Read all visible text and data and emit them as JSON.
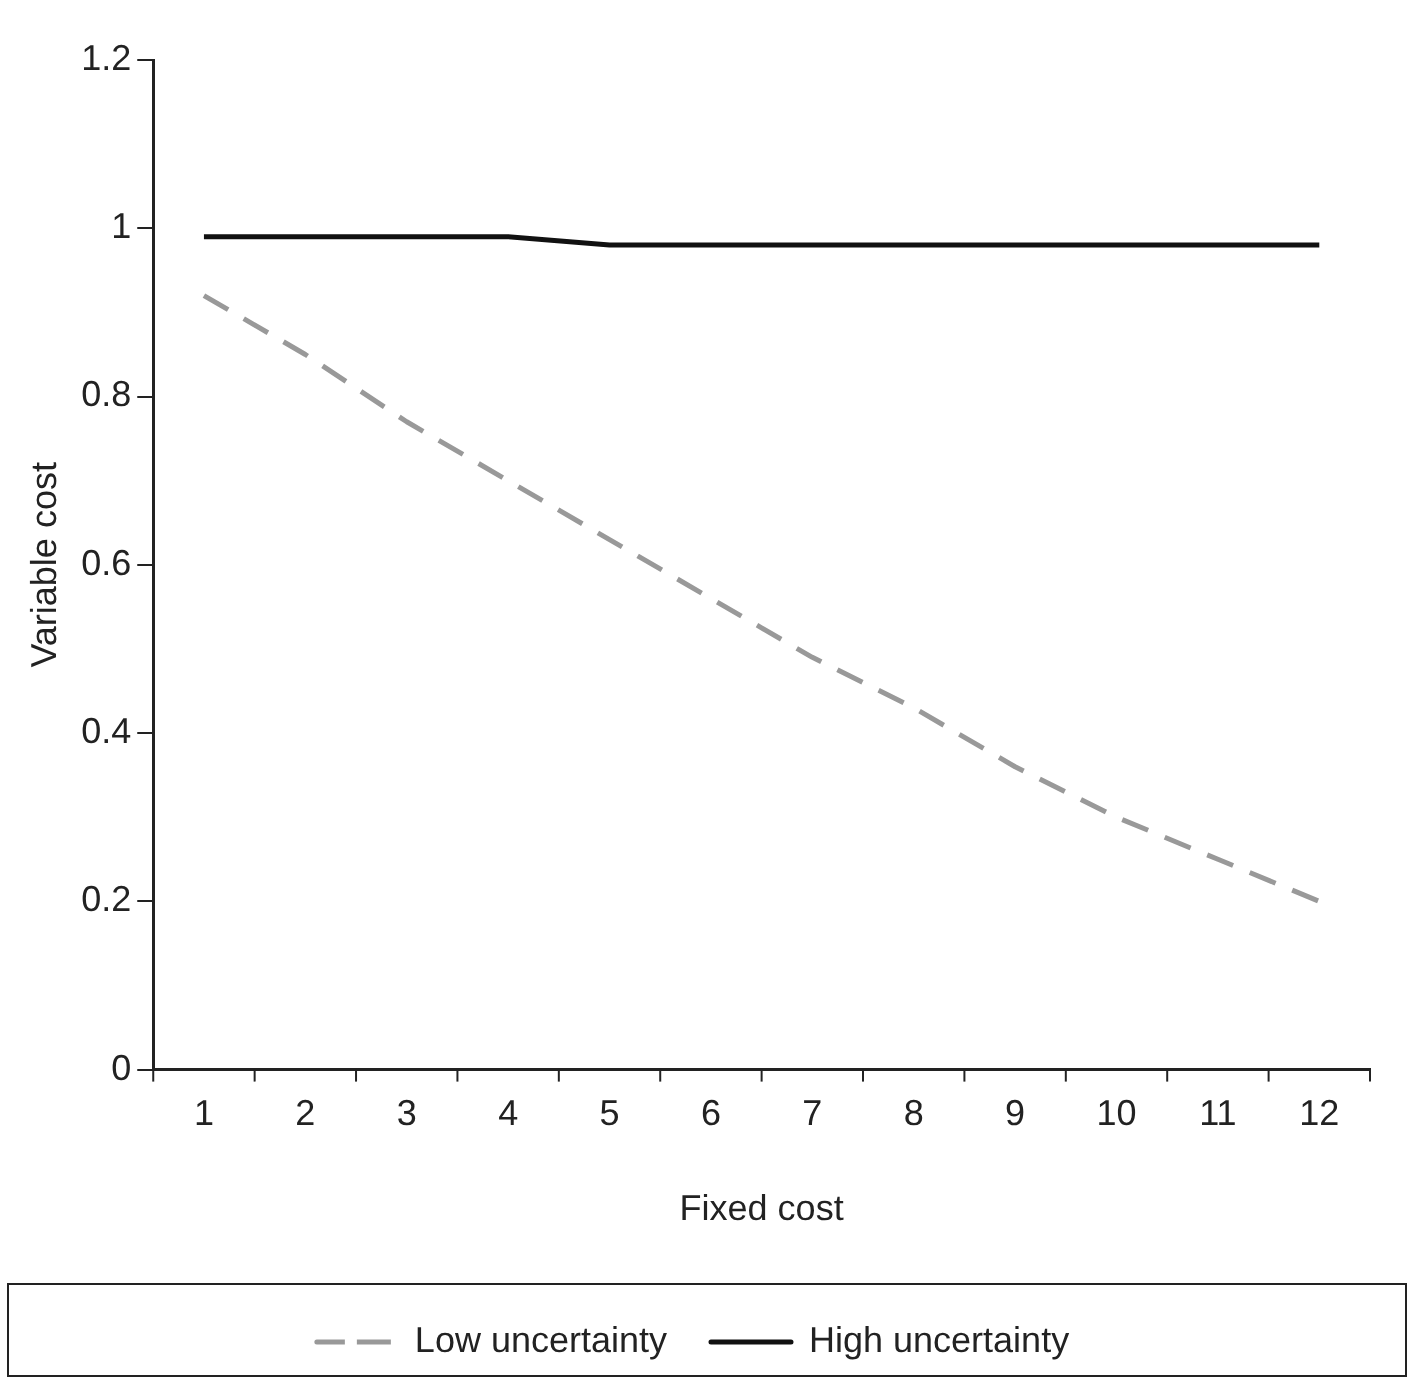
{
  "chart_data": {
    "type": "line",
    "xlabel": "Fixed cost",
    "ylabel": "Variable cost",
    "x": [
      1,
      2,
      3,
      4,
      5,
      6,
      7,
      8,
      9,
      10,
      11,
      12
    ],
    "xlim": [
      0.5,
      12.5
    ],
    "xticks": [
      1,
      2,
      3,
      4,
      5,
      6,
      7,
      8,
      9,
      10,
      11,
      12
    ],
    "series": [
      {
        "name": "Low uncertainty",
        "color": "#999999",
        "line_style": "dashed",
        "values": [
          0.92,
          0.85,
          0.77,
          0.7,
          0.63,
          0.56,
          0.49,
          0.43,
          0.36,
          0.3,
          0.25,
          0.2
        ]
      },
      {
        "name": "High uncertainty",
        "color": "#111111",
        "line_style": "solid",
        "values": [
          0.99,
          0.99,
          0.99,
          0.99,
          0.98,
          0.98,
          0.98,
          0.98,
          0.98,
          0.98,
          0.98,
          0.98
        ]
      }
    ],
    "ylim": [
      0,
      1.2
    ],
    "yticks": [
      0,
      0.2,
      0.4,
      0.6,
      0.8,
      1,
      1.2
    ],
    "grid": false,
    "legend": "bottom",
    "marker": "none"
  }
}
